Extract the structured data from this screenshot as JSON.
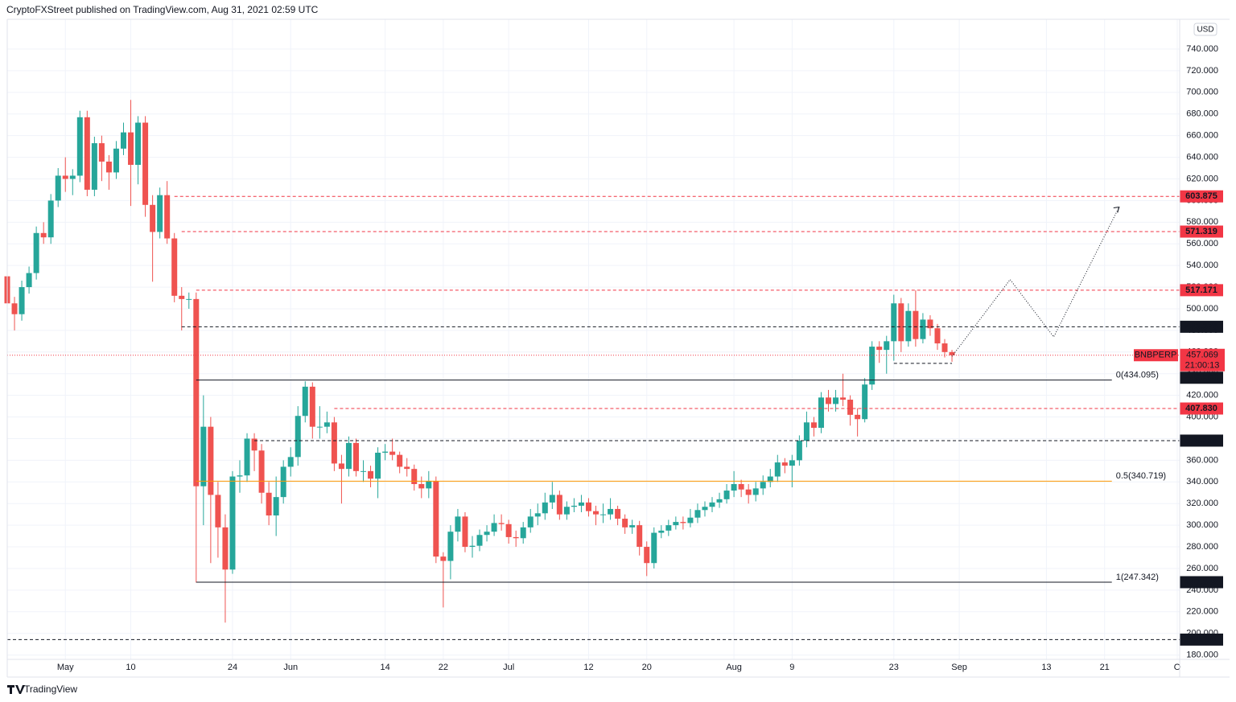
{
  "header": "CryptoFXStreet published on TradingView.com, Aug 31, 2021 02:59 UTC",
  "footer": "TradingView",
  "chart_data": {
    "type": "candlestick",
    "currency": "USD",
    "up_color": "#26a69a",
    "down_color": "#ef5350",
    "grid": true,
    "xlim": [
      "2021-04-23",
      "2021-10-01"
    ],
    "ylim": [
      176,
      767.5
    ],
    "xticks": [
      {
        "value": "2021-05-01",
        "label": "May"
      },
      {
        "value": "2021-05-10",
        "label": "10"
      },
      {
        "value": "2021-05-24",
        "label": "24"
      },
      {
        "value": "2021-06-01",
        "label": "Jun"
      },
      {
        "value": "2021-06-14",
        "label": "14"
      },
      {
        "value": "2021-06-22",
        "label": "22"
      },
      {
        "value": "2021-07-01",
        "label": "Jul"
      },
      {
        "value": "2021-07-12",
        "label": "12"
      },
      {
        "value": "2021-07-20",
        "label": "20"
      },
      {
        "value": "2021-08-01",
        "label": "Aug"
      },
      {
        "value": "2021-08-09",
        "label": "9"
      },
      {
        "value": "2021-08-23",
        "label": "23"
      },
      {
        "value": "2021-09-01",
        "label": "Sep"
      },
      {
        "value": "2021-09-13",
        "label": "13"
      },
      {
        "value": "2021-09-21",
        "label": "21"
      },
      {
        "value": "2021-10-01",
        "label": "O"
      }
    ],
    "yticks": [
      {
        "value": 180,
        "label": "180.000"
      },
      {
        "value": 200,
        "label": "200.000"
      },
      {
        "value": 220,
        "label": "220.000"
      },
      {
        "value": 240,
        "label": "240.000"
      },
      {
        "value": 260,
        "label": "260.000"
      },
      {
        "value": 280,
        "label": "280.000"
      },
      {
        "value": 300,
        "label": "300.000"
      },
      {
        "value": 320,
        "label": "320.000"
      },
      {
        "value": 340,
        "label": "340.000"
      },
      {
        "value": 360,
        "label": "360.000"
      },
      {
        "value": 380,
        "label": "380.000"
      },
      {
        "value": 400,
        "label": "400.000"
      },
      {
        "value": 420,
        "label": "420.000"
      },
      {
        "value": 440,
        "label": "440.000"
      },
      {
        "value": 460,
        "label": "460.000"
      },
      {
        "value": 480,
        "label": "480.000"
      },
      {
        "value": 500,
        "label": "500.000"
      },
      {
        "value": 520,
        "label": "520.000"
      },
      {
        "value": 540,
        "label": "540.000"
      },
      {
        "value": 560,
        "label": "560.000"
      },
      {
        "value": 580,
        "label": "580.000"
      },
      {
        "value": 600,
        "label": "600.000"
      },
      {
        "value": 620,
        "label": "620.000"
      },
      {
        "value": 640,
        "label": "640.000"
      },
      {
        "value": 660,
        "label": "660.000"
      },
      {
        "value": 680,
        "label": "680.000"
      },
      {
        "value": 700,
        "label": "700.000"
      },
      {
        "value": 720,
        "label": "720.000"
      },
      {
        "value": 740,
        "label": "740.000"
      }
    ],
    "x": [
      "2021-04-23",
      "2021-04-24",
      "2021-04-25",
      "2021-04-26",
      "2021-04-27",
      "2021-04-28",
      "2021-04-29",
      "2021-04-30",
      "2021-05-01",
      "2021-05-02",
      "2021-05-03",
      "2021-05-04",
      "2021-05-05",
      "2021-05-06",
      "2021-05-07",
      "2021-05-08",
      "2021-05-09",
      "2021-05-10",
      "2021-05-11",
      "2021-05-12",
      "2021-05-13",
      "2021-05-14",
      "2021-05-15",
      "2021-05-16",
      "2021-05-17",
      "2021-05-18",
      "2021-05-19",
      "2021-05-20",
      "2021-05-21",
      "2021-05-22",
      "2021-05-23",
      "2021-05-24",
      "2021-05-25",
      "2021-05-26",
      "2021-05-27",
      "2021-05-28",
      "2021-05-29",
      "2021-05-30",
      "2021-05-31",
      "2021-06-01",
      "2021-06-02",
      "2021-06-03",
      "2021-06-04",
      "2021-06-05",
      "2021-06-06",
      "2021-06-07",
      "2021-06-08",
      "2021-06-09",
      "2021-06-10",
      "2021-06-11",
      "2021-06-12",
      "2021-06-13",
      "2021-06-14",
      "2021-06-15",
      "2021-06-16",
      "2021-06-17",
      "2021-06-18",
      "2021-06-19",
      "2021-06-20",
      "2021-06-21",
      "2021-06-22",
      "2021-06-23",
      "2021-06-24",
      "2021-06-25",
      "2021-06-26",
      "2021-06-27",
      "2021-06-28",
      "2021-06-29",
      "2021-06-30",
      "2021-07-01",
      "2021-07-02",
      "2021-07-03",
      "2021-07-04",
      "2021-07-05",
      "2021-07-06",
      "2021-07-07",
      "2021-07-08",
      "2021-07-09",
      "2021-07-10",
      "2021-07-11",
      "2021-07-12",
      "2021-07-13",
      "2021-07-14",
      "2021-07-15",
      "2021-07-16",
      "2021-07-17",
      "2021-07-18",
      "2021-07-19",
      "2021-07-20",
      "2021-07-21",
      "2021-07-22",
      "2021-07-23",
      "2021-07-24",
      "2021-07-25",
      "2021-07-26",
      "2021-07-27",
      "2021-07-28",
      "2021-07-29",
      "2021-07-30",
      "2021-07-31",
      "2021-08-01",
      "2021-08-02",
      "2021-08-03",
      "2021-08-04",
      "2021-08-05",
      "2021-08-06",
      "2021-08-07",
      "2021-08-08",
      "2021-08-09",
      "2021-08-10",
      "2021-08-11",
      "2021-08-12",
      "2021-08-13",
      "2021-08-14",
      "2021-08-15",
      "2021-08-16",
      "2021-08-17",
      "2021-08-18",
      "2021-08-19",
      "2021-08-20",
      "2021-08-21",
      "2021-08-22",
      "2021-08-23",
      "2021-08-24",
      "2021-08-25",
      "2021-08-26",
      "2021-08-27",
      "2021-08-28",
      "2021-08-29",
      "2021-08-30",
      "2021-08-31"
    ],
    "open": [
      530,
      505,
      495,
      520,
      533,
      570,
      566,
      600,
      623,
      620,
      623,
      677,
      610,
      653,
      636,
      626,
      648,
      663,
      633,
      672,
      596,
      571,
      605,
      565,
      512,
      509,
      509,
      336,
      391,
      328,
      298,
      259,
      345,
      346,
      380,
      369,
      330,
      309,
      326,
      354,
      363,
      401,
      428,
      391,
      391,
      395,
      357,
      352,
      376,
      350,
      350,
      343,
      367,
      368,
      365,
      354,
      352,
      338,
      334,
      341,
      271,
      267,
      294,
      308,
      280,
      281,
      291,
      294,
      302,
      301,
      289,
      288,
      298,
      308,
      311,
      321,
      328,
      310,
      317,
      318,
      321,
      313,
      310,
      310,
      315,
      306,
      298,
      300,
      280,
      265,
      293,
      295,
      300,
      303,
      302,
      307,
      314,
      317,
      321,
      324,
      332,
      338,
      333,
      328,
      334,
      340,
      345,
      358,
      355,
      360,
      378,
      395,
      390,
      418,
      412,
      418,
      416,
      402,
      398,
      430,
      465,
      462,
      470,
      505,
      470,
      498,
      472,
      490,
      482,
      468,
      460
    ],
    "high": [
      536,
      511,
      526,
      539,
      576,
      580,
      606,
      630,
      640,
      629,
      683,
      683,
      659,
      660,
      642,
      655,
      672,
      693,
      678,
      678,
      605,
      612,
      618,
      570,
      520,
      515,
      515,
      420,
      400,
      340,
      310,
      350,
      360,
      385,
      385,
      375,
      340,
      345,
      360,
      372,
      410,
      433,
      432,
      410,
      405,
      400,
      365,
      382,
      380,
      360,
      355,
      372,
      375,
      380,
      368,
      362,
      356,
      345,
      350,
      345,
      275,
      300,
      315,
      312,
      290,
      296,
      300,
      310,
      310,
      305,
      295,
      303,
      315,
      320,
      330,
      340,
      332,
      322,
      325,
      328,
      325,
      318,
      320,
      325,
      318,
      310,
      305,
      304,
      285,
      298,
      300,
      305,
      308,
      308,
      315,
      320,
      322,
      326,
      330,
      338,
      350,
      342,
      338,
      340,
      346,
      352,
      365,
      362,
      365,
      383,
      405,
      400,
      423,
      425,
      425,
      440,
      420,
      408,
      436,
      470,
      470,
      475,
      513,
      510,
      505,
      517,
      496,
      494,
      486,
      472,
      462
    ],
    "low": [
      499,
      480,
      489,
      514,
      527,
      560,
      560,
      594,
      608,
      605,
      617,
      604,
      604,
      618,
      610,
      620,
      642,
      595,
      615,
      585,
      525,
      565,
      560,
      506,
      480,
      500,
      247,
      300,
      265,
      270,
      210,
      255,
      330,
      340,
      350,
      320,
      300,
      290,
      320,
      345,
      355,
      395,
      380,
      380,
      385,
      350,
      320,
      345,
      345,
      340,
      335,
      325,
      360,
      360,
      348,
      345,
      332,
      325,
      325,
      265,
      224,
      250,
      285,
      275,
      270,
      276,
      285,
      290,
      295,
      283,
      280,
      283,
      293,
      300,
      305,
      315,
      305,
      305,
      312,
      312,
      308,
      300,
      302,
      305,
      300,
      292,
      292,
      272,
      253,
      260,
      288,
      290,
      296,
      296,
      298,
      302,
      308,
      312,
      316,
      320,
      326,
      326,
      320,
      322,
      328,
      335,
      340,
      348,
      335,
      355,
      372,
      382,
      385,
      405,
      405,
      410,
      392,
      382,
      395,
      425,
      450,
      440,
      452,
      460,
      465,
      465,
      468,
      475,
      462,
      455,
      451
    ],
    "close": [
      505,
      495,
      520,
      533,
      570,
      566,
      600,
      623,
      620,
      623,
      677,
      610,
      653,
      636,
      626,
      648,
      663,
      633,
      672,
      596,
      571,
      605,
      565,
      512,
      509,
      509,
      336,
      391,
      328,
      298,
      259,
      345,
      346,
      380,
      369,
      330,
      309,
      326,
      354,
      363,
      401,
      428,
      391,
      391,
      395,
      357,
      352,
      376,
      350,
      350,
      343,
      367,
      368,
      365,
      354,
      352,
      338,
      334,
      341,
      271,
      267,
      294,
      308,
      280,
      281,
      291,
      294,
      302,
      301,
      289,
      288,
      298,
      308,
      311,
      321,
      328,
      310,
      317,
      318,
      321,
      313,
      310,
      310,
      315,
      306,
      298,
      300,
      280,
      265,
      293,
      295,
      300,
      303,
      302,
      307,
      314,
      317,
      321,
      324,
      332,
      338,
      333,
      328,
      334,
      340,
      345,
      358,
      355,
      360,
      378,
      395,
      390,
      418,
      412,
      418,
      416,
      402,
      398,
      430,
      465,
      462,
      470,
      505,
      470,
      498,
      472,
      490,
      482,
      468,
      460,
      457.069
    ],
    "last": {
      "name": "BNBPERP",
      "value": 457.069,
      "countdown": "21:00:13",
      "color": "#f23645"
    },
    "levels": [
      {
        "value": 603.875,
        "color": "#f23645",
        "style": "dashed",
        "from": "2021-05-16"
      },
      {
        "value": 571.319,
        "color": "#f23645",
        "style": "dashed",
        "from": "2021-05-17"
      },
      {
        "value": 517.171,
        "color": "#f23645",
        "style": "dashed",
        "from": "2021-05-19"
      },
      {
        "value": 483.376,
        "color": "#131722",
        "style": "dashed",
        "from": "2021-05-17"
      },
      {
        "value": 449.563,
        "color": "#131722",
        "style": "dashed",
        "from": "2021-08-23",
        "to": "2021-08-31"
      },
      {
        "value": 407.83,
        "label": "407.830",
        "color": "#f23645",
        "style": "dashed",
        "from": "2021-06-07"
      },
      {
        "value": 378.158,
        "color": "#131722",
        "style": "dashed",
        "from": "2021-05-27"
      },
      {
        "value": 247.342,
        "color": "#131722",
        "style": "solid",
        "from": "2021-05-19",
        "to": "2021-09-22",
        "text": "1(247.342)"
      },
      {
        "value": 194.291,
        "color": "#131722",
        "style": "dashed",
        "from": "2021-04-23"
      }
    ],
    "fib_lines": [
      {
        "value": 434.095,
        "text": "0(434.095)",
        "color": "#131722",
        "from": "2021-05-19",
        "to": "2021-09-22"
      },
      {
        "value": 340.719,
        "text": "0.5(340.719)",
        "color": "#ff9800",
        "from": "2021-05-19",
        "to": "2021-09-22"
      }
    ],
    "projection": {
      "x": [
        "2021-08-31",
        "2021-09-08",
        "2021-09-14",
        "2021-09-23"
      ],
      "values": [
        456,
        527,
        474,
        594
      ],
      "color": "#131722"
    }
  }
}
